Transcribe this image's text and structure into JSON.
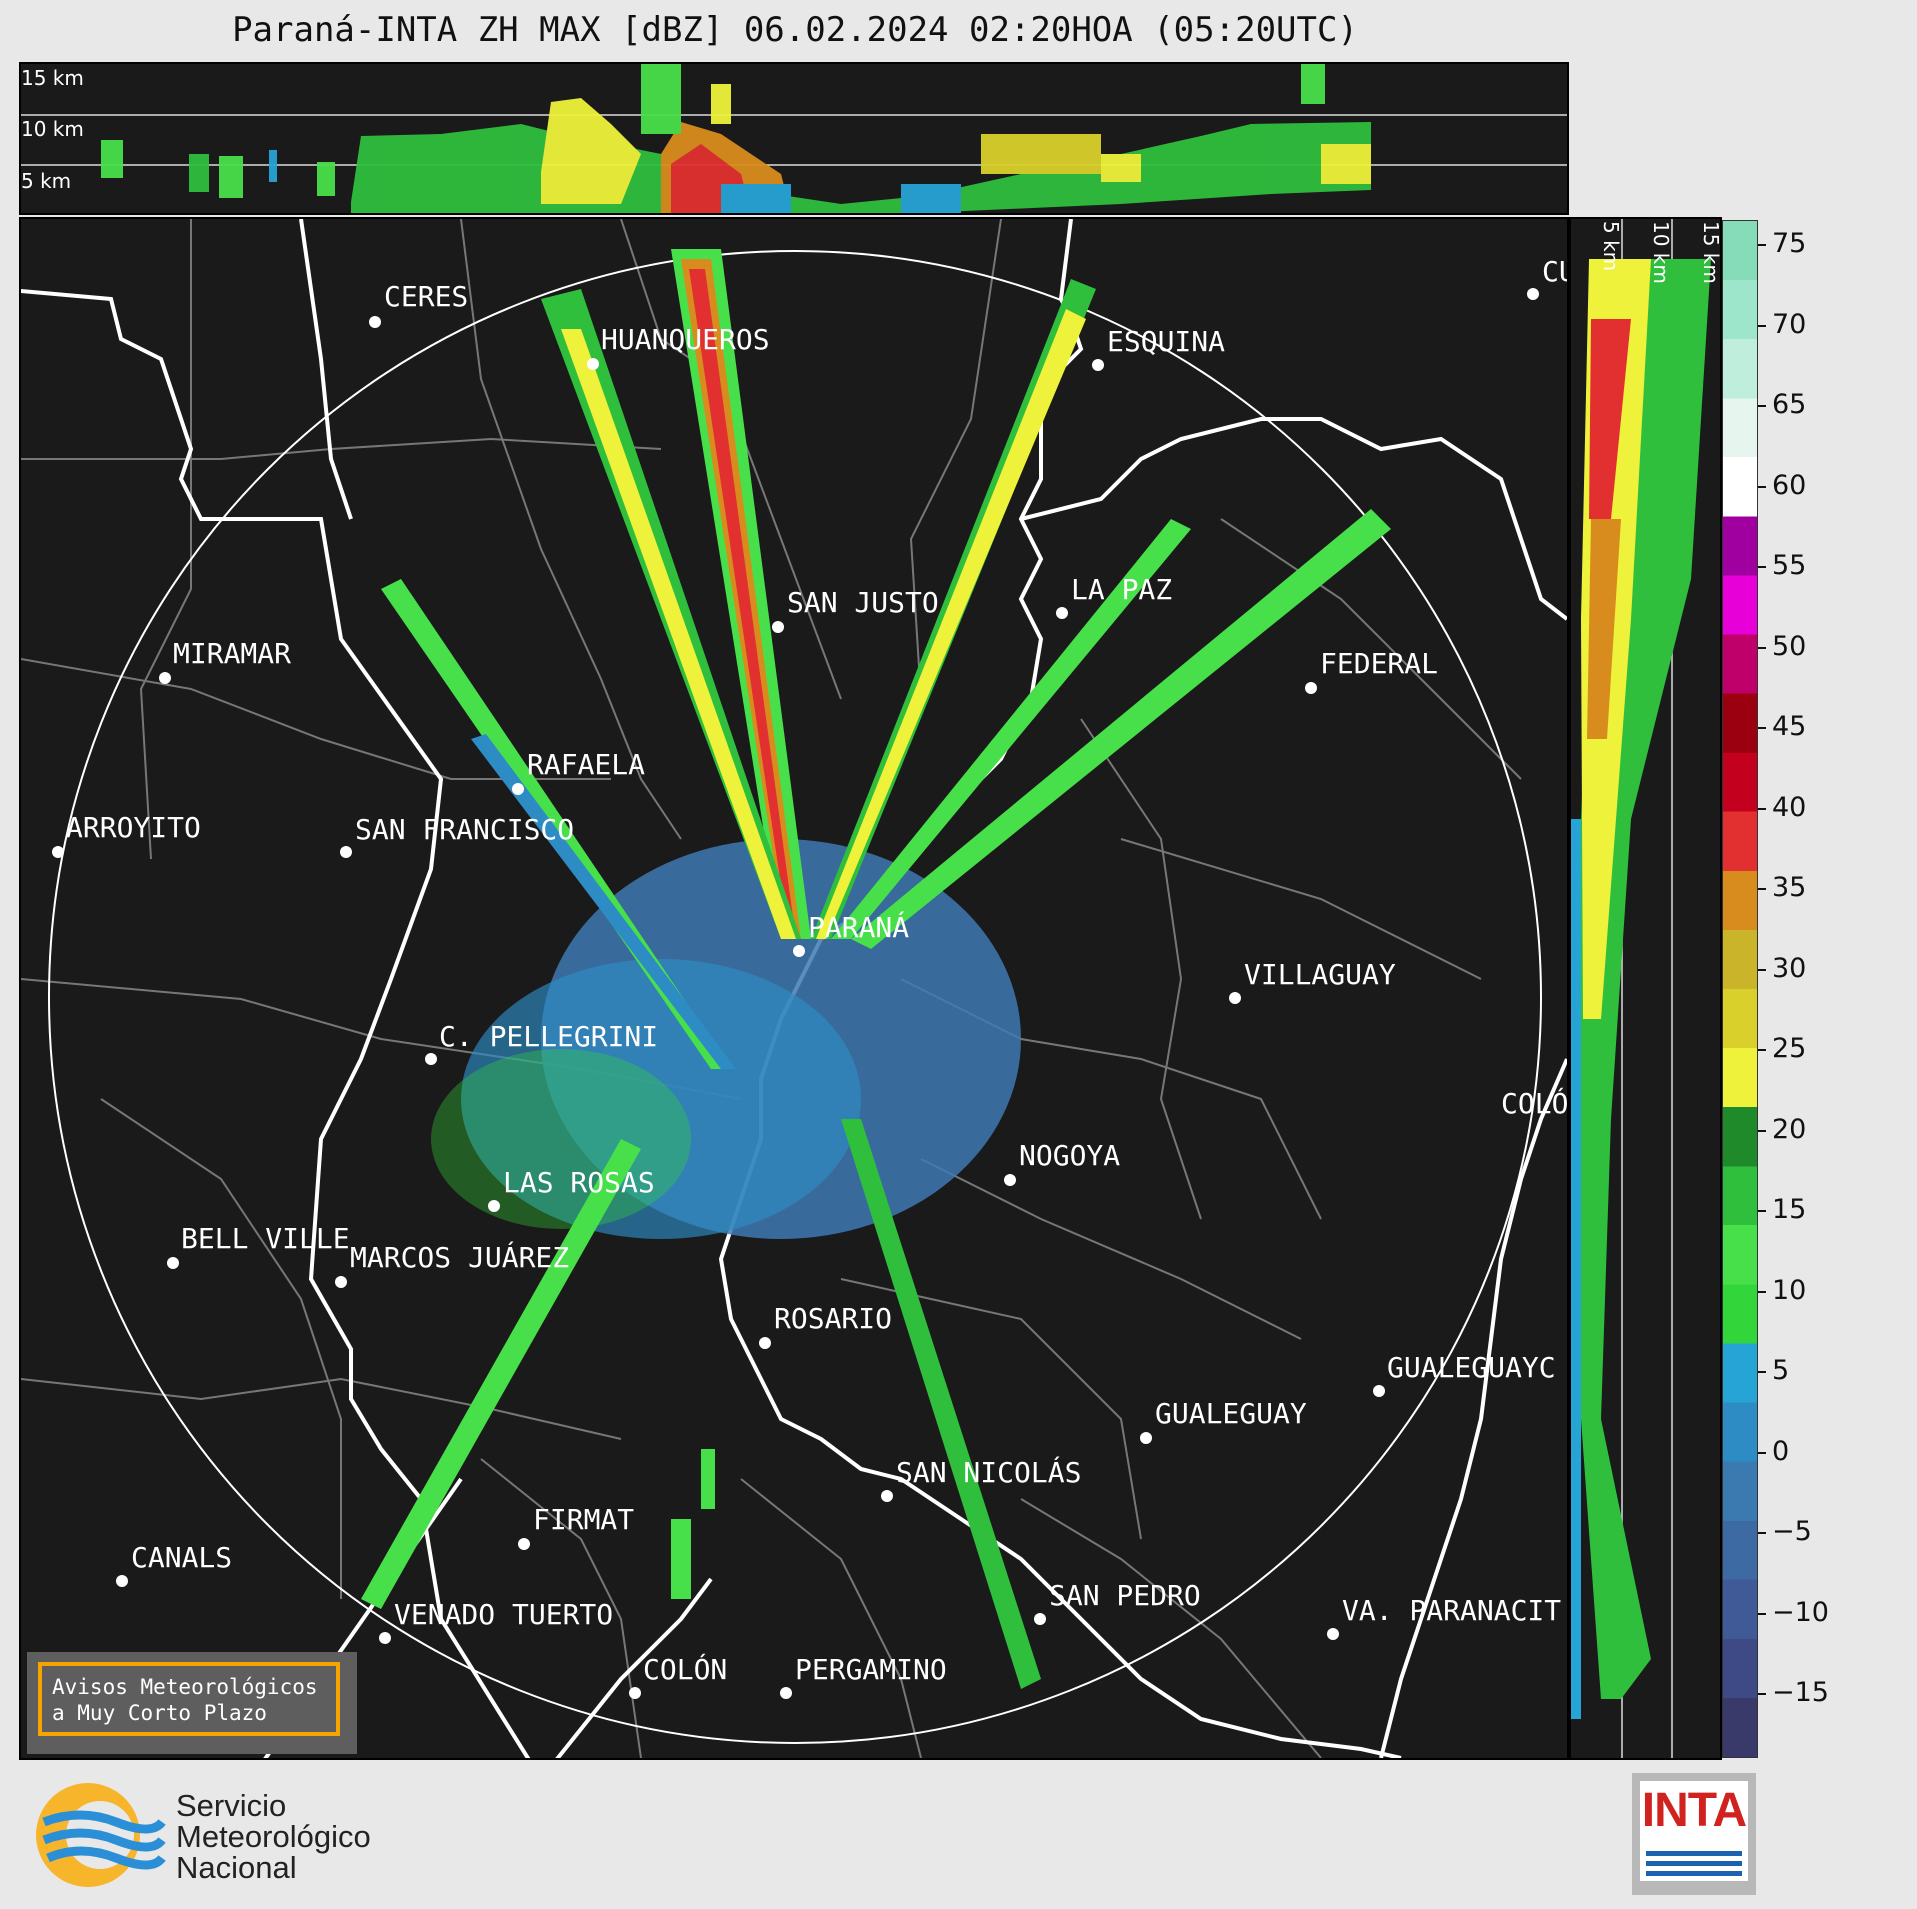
{
  "title": "Paraná-INTA ZH MAX [dBZ] 06.02.2024 02:20HOA (05:20UTC)",
  "xsection_top": {
    "labels": [
      "15 km",
      "10 km",
      "5 km"
    ]
  },
  "xsection_right": {
    "labels": [
      "5 km",
      "10 km",
      "15 km"
    ]
  },
  "colorbar": {
    "ticks": [
      "75",
      "70",
      "65",
      "60",
      "55",
      "50",
      "45",
      "40",
      "35",
      "30",
      "25",
      "20",
      "15",
      "10",
      "5",
      "0",
      "−5",
      "−10",
      "−15"
    ],
    "colors": [
      "#3a3a6a",
      "#3d4a85",
      "#3f5a96",
      "#3e6aa3",
      "#3b7ab0",
      "#2e8cc4",
      "#26a4d6",
      "#33d63a",
      "#48e04a",
      "#2fbf3d",
      "#1e8a2a",
      "#eef23a",
      "#d9d02b",
      "#c9b42a",
      "#d88c1e",
      "#e23030",
      "#c4001f",
      "#9a0010",
      "#c0006a",
      "#e800d8",
      "#a000a0",
      "#ffffff",
      "#e6f5ee",
      "#bfeedd",
      "#9ee6cb",
      "#86dcb9"
    ],
    "stops": [
      -19,
      30,
      60,
      77
    ]
  },
  "cities": [
    {
      "name": "CERES"
    },
    {
      "name": "HUANQUEROS"
    },
    {
      "name": "ESQUINA"
    },
    {
      "name": "CU"
    },
    {
      "name": "SAN JUSTO"
    },
    {
      "name": "LA PAZ"
    },
    {
      "name": "MIRAMAR"
    },
    {
      "name": "FEDERAL"
    },
    {
      "name": "RAFAELA"
    },
    {
      "name": "ARROYITO"
    },
    {
      "name": "SAN FRANCISCO"
    },
    {
      "name": "PARANÁ"
    },
    {
      "name": "VILLAGUAY"
    },
    {
      "name": "C. PELLEGRINI"
    },
    {
      "name": "COLÓ"
    },
    {
      "name": "NOGOYA"
    },
    {
      "name": "LAS ROSAS"
    },
    {
      "name": "BELL VILLE"
    },
    {
      "name": "MARCOS JUÁREZ"
    },
    {
      "name": "ROSARIO"
    },
    {
      "name": "GUALEGUAYC"
    },
    {
      "name": "GUALEGUAY"
    },
    {
      "name": "SAN NICOLÁS"
    },
    {
      "name": "FIRMAT"
    },
    {
      "name": "CANALS"
    },
    {
      "name": "SAN PEDRO"
    },
    {
      "name": "VENADO TUERTO"
    },
    {
      "name": "VA. PARANACIT"
    },
    {
      "name": "COLÓN"
    },
    {
      "name": "PERGAMINO"
    }
  ],
  "aviso": {
    "line1": "Avisos Meteorológicos",
    "line2": "a Muy Corto Plazo"
  },
  "smn": {
    "line1": "Servicio",
    "line2": "Meteorológico",
    "line3": "Nacional"
  },
  "inta": {
    "text": "INTA"
  }
}
